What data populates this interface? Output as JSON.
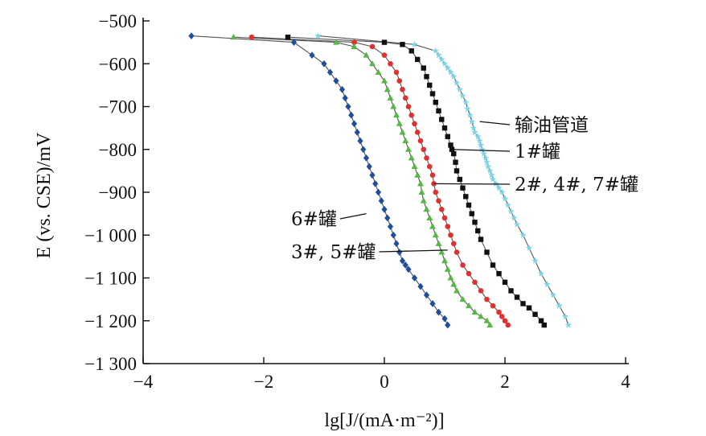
{
  "chart_data": {
    "type": "scatter",
    "title": "",
    "xlabel": "lg[J/(mA·m⁻²)]",
    "ylabel": "E (vs. CSE)/mV",
    "xlim": [
      -4,
      4
    ],
    "ylim": [
      -1300,
      -500
    ],
    "x_ticks": [
      -4,
      -2,
      0,
      2,
      4
    ],
    "x_tick_labels": [
      "−4",
      "−2",
      "0",
      "2",
      "4"
    ],
    "y_ticks": [
      -500,
      -600,
      -700,
      -800,
      -900,
      -1000,
      -1100,
      -1200,
      -1300
    ],
    "y_tick_labels": [
      "−500",
      "−600",
      "−700",
      "−800",
      "−900",
      "−1 000",
      "−1 100",
      "−1 200",
      "−1 300"
    ],
    "grid": false,
    "legend": "none",
    "series": [
      {
        "label_text": "输油管道",
        "color": "#7fd3e6",
        "marker": "star",
        "x": [
          -1.1,
          0.5,
          0.85,
          0.9,
          0.95,
          1.0,
          1.05,
          1.1,
          1.15,
          1.2,
          1.25,
          1.3,
          1.35,
          1.38,
          1.42,
          1.45,
          1.48,
          1.5,
          1.55,
          1.58,
          1.6,
          1.62,
          1.65,
          1.68,
          1.7,
          1.72,
          1.75,
          1.78,
          1.8,
          1.85,
          1.9,
          1.95,
          2.0,
          2.05,
          2.1,
          2.15,
          2.2,
          2.3,
          2.4,
          2.5,
          2.6,
          2.7,
          2.8,
          2.9,
          3.0,
          3.05
        ],
        "y": [
          -535,
          -555,
          -570,
          -580,
          -590,
          -600,
          -610,
          -620,
          -630,
          -645,
          -660,
          -675,
          -690,
          -705,
          -720,
          -735,
          -750,
          -760,
          -770,
          -780,
          -790,
          -800,
          -810,
          -820,
          -830,
          -840,
          -850,
          -860,
          -870,
          -880,
          -890,
          -900,
          -915,
          -930,
          -945,
          -960,
          -975,
          -1000,
          -1030,
          -1060,
          -1090,
          -1115,
          -1140,
          -1165,
          -1190,
          -1210
        ]
      },
      {
        "label_text": "1#罐",
        "color": "#111111",
        "marker": "square",
        "x": [
          -1.6,
          0.0,
          0.3,
          0.45,
          0.55,
          0.65,
          0.7,
          0.75,
          0.8,
          0.85,
          0.9,
          0.95,
          1.0,
          1.05,
          1.1,
          1.12,
          1.15,
          1.18,
          1.2,
          1.25,
          1.3,
          1.35,
          1.4,
          1.45,
          1.5,
          1.55,
          1.6,
          1.7,
          1.8,
          1.9,
          2.0,
          2.1,
          2.2,
          2.3,
          2.4,
          2.5,
          2.6,
          2.65
        ],
        "y": [
          -538,
          -550,
          -555,
          -570,
          -590,
          -610,
          -630,
          -650,
          -670,
          -690,
          -710,
          -730,
          -750,
          -770,
          -790,
          -800,
          -810,
          -830,
          -850,
          -870,
          -890,
          -910,
          -930,
          -950,
          -970,
          -990,
          -1010,
          -1040,
          -1070,
          -1090,
          -1110,
          -1130,
          -1145,
          -1160,
          -1170,
          -1185,
          -1200,
          -1210
        ]
      },
      {
        "label_text": "2#, 4#, 7#罐",
        "color": "#e03030",
        "marker": "circle",
        "x": [
          -2.2,
          -0.5,
          -0.2,
          0.0,
          0.1,
          0.2,
          0.25,
          0.3,
          0.35,
          0.4,
          0.45,
          0.5,
          0.55,
          0.6,
          0.65,
          0.7,
          0.75,
          0.8,
          0.82,
          0.85,
          0.9,
          0.95,
          1.0,
          1.05,
          1.1,
          1.15,
          1.2,
          1.3,
          1.4,
          1.5,
          1.6,
          1.7,
          1.8,
          1.9,
          1.95,
          2.0,
          2.05
        ],
        "y": [
          -538,
          -550,
          -560,
          -580,
          -600,
          -620,
          -640,
          -660,
          -680,
          -700,
          -720,
          -740,
          -760,
          -780,
          -800,
          -820,
          -840,
          -860,
          -880,
          -900,
          -920,
          -940,
          -960,
          -980,
          -1000,
          -1020,
          -1040,
          -1070,
          -1090,
          -1110,
          -1130,
          -1150,
          -1165,
          -1180,
          -1190,
          -1200,
          -1210
        ]
      },
      {
        "label_text": "3#, 5#罐",
        "color": "#55b845",
        "marker": "triangle",
        "x": [
          -2.5,
          -0.8,
          -0.5,
          -0.3,
          -0.2,
          -0.1,
          0.0,
          0.05,
          0.1,
          0.15,
          0.2,
          0.25,
          0.3,
          0.35,
          0.4,
          0.45,
          0.5,
          0.55,
          0.6,
          0.62,
          0.65,
          0.7,
          0.75,
          0.8,
          0.85,
          0.9,
          0.95,
          1.0,
          1.05,
          1.1,
          1.15,
          1.2,
          1.3,
          1.4,
          1.5,
          1.6,
          1.7,
          1.75
        ],
        "y": [
          -538,
          -550,
          -560,
          -580,
          -600,
          -620,
          -640,
          -660,
          -680,
          -700,
          -720,
          -740,
          -760,
          -780,
          -800,
          -820,
          -840,
          -860,
          -880,
          -900,
          -920,
          -940,
          -960,
          -980,
          -1000,
          -1020,
          -1040,
          -1060,
          -1080,
          -1100,
          -1115,
          -1130,
          -1150,
          -1165,
          -1180,
          -1190,
          -1200,
          -1210
        ]
      },
      {
        "label_text": "6#罐",
        "color": "#1f4f9c",
        "marker": "diamond",
        "x": [
          -3.2,
          -1.5,
          -1.2,
          -1.0,
          -0.9,
          -0.8,
          -0.7,
          -0.65,
          -0.6,
          -0.55,
          -0.5,
          -0.45,
          -0.4,
          -0.35,
          -0.3,
          -0.25,
          -0.2,
          -0.15,
          -0.1,
          -0.05,
          0.0,
          0.05,
          0.1,
          0.15,
          0.2,
          0.25,
          0.3,
          0.35,
          0.4,
          0.5,
          0.6,
          0.7,
          0.8,
          0.9,
          1.0,
          1.05
        ],
        "y": [
          -535,
          -550,
          -580,
          -600,
          -620,
          -640,
          -660,
          -680,
          -700,
          -720,
          -740,
          -760,
          -780,
          -800,
          -820,
          -840,
          -860,
          -880,
          -900,
          -920,
          -940,
          -960,
          -980,
          -1000,
          -1020,
          -1040,
          -1060,
          -1070,
          -1080,
          -1100,
          -1120,
          -1140,
          -1160,
          -1180,
          -1195,
          -1210
        ]
      }
    ],
    "annotations": [
      {
        "text": "输油管道",
        "side": "right",
        "point_x": 1.58,
        "point_y": -735
      },
      {
        "text": "1#罐",
        "side": "right",
        "point_x": 1.12,
        "point_y": -800
      },
      {
        "text": "2#, 4#, 7#罐",
        "side": "right",
        "point_x": 0.82,
        "point_y": -880
      },
      {
        "text": "6#罐",
        "side": "left",
        "point_x": -0.3,
        "point_y": -950
      },
      {
        "text": "3#, 5#罐",
        "side": "left",
        "point_x": 1.05,
        "point_y": -1035
      }
    ]
  }
}
